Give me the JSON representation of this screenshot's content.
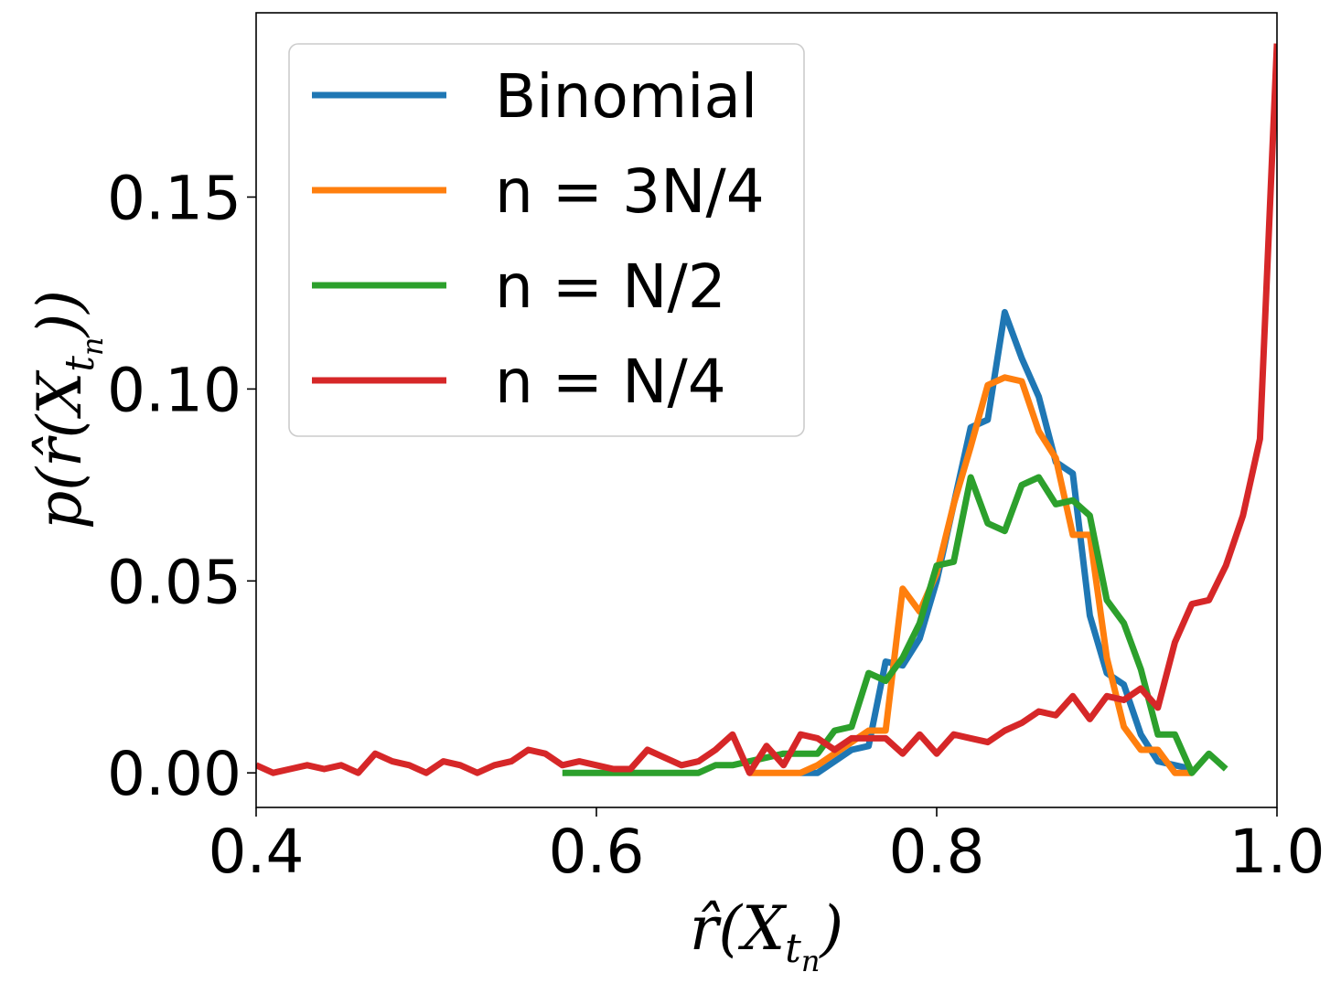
{
  "chart_data": {
    "type": "line",
    "title": "",
    "xlabel": "r̂(X_{t_n})",
    "ylabel": "p(r̂(X_{t_n}))",
    "xlim": [
      0.4,
      1.0
    ],
    "ylim": [
      -0.009,
      0.198
    ],
    "xticks": [
      0.4,
      0.6,
      0.8,
      1.0
    ],
    "xtick_labels": [
      "0.4",
      "0.6",
      "0.8",
      "1.0"
    ],
    "yticks": [
      0.0,
      0.05,
      0.1,
      0.15
    ],
    "ytick_labels": [
      "0.00",
      "0.05",
      "0.10",
      "0.15"
    ],
    "legend_position": "upper-left",
    "series": [
      {
        "name": "Binomial",
        "color": "#1f77b4",
        "x": [
          0.72,
          0.73,
          0.74,
          0.75,
          0.76,
          0.77,
          0.78,
          0.79,
          0.8,
          0.81,
          0.82,
          0.83,
          0.84,
          0.85,
          0.86,
          0.87,
          0.88,
          0.89,
          0.9,
          0.91,
          0.92,
          0.93,
          0.94,
          0.95
        ],
        "y": [
          0.0,
          0.0,
          0.003,
          0.006,
          0.007,
          0.029,
          0.028,
          0.035,
          0.05,
          0.07,
          0.09,
          0.092,
          0.12,
          0.108,
          0.098,
          0.081,
          0.078,
          0.041,
          0.026,
          0.023,
          0.01,
          0.003,
          0.002,
          0.001
        ]
      },
      {
        "name": "n = 3N/4",
        "color": "#ff7f0e",
        "x": [
          0.69,
          0.7,
          0.71,
          0.72,
          0.73,
          0.74,
          0.75,
          0.76,
          0.77,
          0.78,
          0.79,
          0.8,
          0.81,
          0.82,
          0.83,
          0.84,
          0.85,
          0.86,
          0.87,
          0.88,
          0.89,
          0.9,
          0.91,
          0.92,
          0.93,
          0.94,
          0.95
        ],
        "y": [
          0.0,
          0.0,
          0.0,
          0.0,
          0.002,
          0.005,
          0.008,
          0.011,
          0.011,
          0.048,
          0.042,
          0.052,
          0.07,
          0.085,
          0.101,
          0.103,
          0.102,
          0.089,
          0.082,
          0.062,
          0.062,
          0.03,
          0.012,
          0.006,
          0.006,
          0.0,
          0.0
        ]
      },
      {
        "name": "n = N/2",
        "color": "#2ca02c",
        "x": [
          0.58,
          0.59,
          0.6,
          0.61,
          0.62,
          0.63,
          0.64,
          0.65,
          0.66,
          0.67,
          0.68,
          0.69,
          0.7,
          0.71,
          0.72,
          0.73,
          0.74,
          0.75,
          0.76,
          0.77,
          0.78,
          0.79,
          0.8,
          0.81,
          0.82,
          0.83,
          0.84,
          0.85,
          0.86,
          0.87,
          0.88,
          0.89,
          0.9,
          0.91,
          0.92,
          0.93,
          0.94,
          0.95,
          0.96,
          0.97
        ],
        "y": [
          0.0,
          0.0,
          0.0,
          0.0,
          0.0,
          0.0,
          0.0,
          0.0,
          0.0,
          0.002,
          0.002,
          0.003,
          0.004,
          0.005,
          0.005,
          0.005,
          0.011,
          0.012,
          0.026,
          0.024,
          0.03,
          0.039,
          0.054,
          0.055,
          0.077,
          0.065,
          0.063,
          0.075,
          0.077,
          0.07,
          0.071,
          0.067,
          0.045,
          0.039,
          0.027,
          0.01,
          0.01,
          0.0,
          0.005,
          0.001
        ]
      },
      {
        "name": "n = N/4",
        "color": "#d62728",
        "x": [
          0.4,
          0.41,
          0.42,
          0.43,
          0.44,
          0.45,
          0.46,
          0.47,
          0.48,
          0.49,
          0.5,
          0.51,
          0.52,
          0.53,
          0.54,
          0.55,
          0.56,
          0.57,
          0.58,
          0.59,
          0.6,
          0.61,
          0.62,
          0.63,
          0.64,
          0.65,
          0.66,
          0.67,
          0.68,
          0.69,
          0.7,
          0.71,
          0.72,
          0.73,
          0.74,
          0.75,
          0.76,
          0.77,
          0.78,
          0.79,
          0.8,
          0.81,
          0.82,
          0.83,
          0.84,
          0.85,
          0.86,
          0.87,
          0.88,
          0.89,
          0.9,
          0.91,
          0.92,
          0.93,
          0.94,
          0.95,
          0.96,
          0.97,
          0.98,
          0.99,
          1.0
        ],
        "y": [
          0.002,
          0.0,
          0.001,
          0.002,
          0.001,
          0.002,
          0.0,
          0.005,
          0.003,
          0.002,
          0.0,
          0.003,
          0.002,
          0.0,
          0.002,
          0.003,
          0.006,
          0.005,
          0.002,
          0.003,
          0.002,
          0.001,
          0.001,
          0.006,
          0.004,
          0.002,
          0.003,
          0.006,
          0.01,
          0.0,
          0.007,
          0.002,
          0.01,
          0.009,
          0.006,
          0.009,
          0.009,
          0.009,
          0.005,
          0.01,
          0.005,
          0.01,
          0.009,
          0.008,
          0.011,
          0.013,
          0.016,
          0.015,
          0.02,
          0.014,
          0.02,
          0.019,
          0.022,
          0.017,
          0.034,
          0.044,
          0.045,
          0.054,
          0.067,
          0.087,
          0.19
        ]
      }
    ]
  }
}
